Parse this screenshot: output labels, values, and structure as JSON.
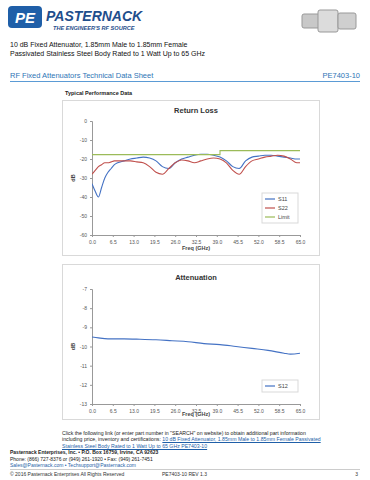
{
  "header": {
    "logo_mark": "PE",
    "logo_name": "PASTERNACK",
    "tagline": "THE ENGINEER'S RF SOURCE",
    "title_lines": [
      "10 dB Fixed Attenuator, 1.85mm Male to 1.85mm Female",
      "Passivated Stainless Steel Body Rated to 1 Watt Up to 65 GHz"
    ]
  },
  "section": {
    "title": "RF Fixed Attenuators Technical Data Sheet",
    "part_number": "PE7403-10"
  },
  "performance_title": "Typical Performance Data",
  "chart_data": [
    {
      "type": "line",
      "title": "Return Loss",
      "x_label": "Freq (GHz)",
      "y_label": "dB",
      "x": [
        0,
        1,
        2,
        3,
        4,
        5,
        6,
        7,
        8,
        10,
        12,
        14,
        16,
        18,
        20,
        22,
        24,
        26,
        28,
        30,
        32,
        34,
        36,
        38,
        40,
        42,
        44,
        46,
        48,
        50,
        52,
        54,
        56,
        58,
        60,
        62,
        64,
        65
      ],
      "series": [
        {
          "name": "S11",
          "color": "#4472c4",
          "line_style": "solid",
          "values": [
            -33,
            -37,
            -40,
            -35,
            -30,
            -27,
            -25,
            -23,
            -22,
            -21,
            -20,
            -19.5,
            -19,
            -19.5,
            -21,
            -24,
            -25,
            -22,
            -20,
            -19,
            -18,
            -17.5,
            -17.5,
            -18,
            -19,
            -21,
            -24,
            -25,
            -21,
            -19,
            -18.5,
            -18,
            -18,
            -18.5,
            -19,
            -19.5,
            -20,
            -20
          ]
        },
        {
          "name": "S22",
          "color": "#c0504d",
          "line_style": "solid",
          "values": [
            -28,
            -26,
            -24,
            -23,
            -22,
            -22,
            -21.5,
            -21,
            -21,
            -21,
            -21,
            -21.5,
            -22,
            -24,
            -27,
            -28,
            -25,
            -22,
            -20.5,
            -21,
            -22,
            -21,
            -20,
            -19.5,
            -20,
            -22,
            -26,
            -28,
            -24,
            -21,
            -20,
            -19,
            -18.5,
            -18,
            -18.5,
            -20,
            -22,
            -22
          ]
        },
        {
          "name": "Limit",
          "color": "#9bbb59",
          "line_style": "step",
          "values": [
            -17.7,
            -17.7,
            -17.7,
            -17.7,
            -17.7,
            -17.7,
            -17.7,
            -17.7,
            -17.7,
            -17.7,
            -17.7,
            -17.7,
            -17.7,
            -17.7,
            -17.7,
            -17.7,
            -17.7,
            -17.7,
            -17.7,
            -17.7,
            -17.7,
            -17.7,
            -17.7,
            -17.7,
            -15.6,
            -15.6,
            -15.6,
            -15.6,
            -15.6,
            -15.6,
            -15.6,
            -15.6,
            -15.6,
            -15.6,
            -15.6,
            -15.6,
            -15.6,
            -15.6
          ]
        }
      ],
      "xlim": [
        0,
        65
      ],
      "xticks": [
        {
          "value": 0,
          "label": "0.0"
        },
        6.5,
        {
          "value": 13,
          "label": "13.0"
        },
        19.5,
        {
          "value": 26,
          "label": "26.0"
        },
        32.5,
        {
          "value": 39,
          "label": "39.0"
        },
        45.5,
        {
          "value": 52,
          "label": "52.0"
        },
        58.5,
        {
          "value": 65,
          "label": "65.0"
        }
      ],
      "ylim": [
        -60,
        0
      ],
      "yticks": [
        0,
        -10,
        -20,
        -30,
        -40,
        -50,
        -60
      ],
      "grid": false,
      "legend": "bottom-right"
    },
    {
      "type": "line",
      "title": "Attenuation",
      "x_label": "Freq (GHz)",
      "y_label": "dB",
      "x": [
        0,
        2,
        5,
        10,
        15,
        20,
        25,
        30,
        35,
        40,
        45,
        50,
        55,
        60,
        62,
        65
      ],
      "series": [
        {
          "name": "S12",
          "color": "#4472c4",
          "line_style": "solid",
          "values": [
            -9.5,
            -9.55,
            -9.6,
            -9.6,
            -9.62,
            -9.65,
            -9.7,
            -9.75,
            -9.85,
            -9.9,
            -10.0,
            -10.1,
            -10.2,
            -10.35,
            -10.4,
            -10.35
          ]
        }
      ],
      "xlim": [
        0,
        65
      ],
      "xticks": [
        {
          "value": 0,
          "label": "0.0"
        },
        6.5,
        {
          "value": 13,
          "label": "13.0"
        },
        19.5,
        {
          "value": 26,
          "label": "26.0"
        },
        32.5,
        {
          "value": 39,
          "label": "39.0"
        },
        45.5,
        {
          "value": 52,
          "label": "52.0"
        },
        58.5,
        {
          "value": 65,
          "label": "65.0"
        }
      ],
      "ylim": [
        -13,
        -7
      ],
      "yticks": [
        -7,
        -8,
        -9,
        -10,
        -11,
        -12,
        -13
      ],
      "grid": false,
      "legend": "bottom-right"
    }
  ],
  "link_text": {
    "lead": "Click the following link (or enter part number in \"SEARCH\" on website) to obtain additional part information including price, inventory and certifications:",
    "link": "10 dB Fixed Attenuator, 1.85mm Male to 1.85mm Female Passivated Stainless Steel Body Rated to 1 Watt Up to 65 GHz PE7403-10"
  },
  "contact": [
    "Pasternack Enterprises, Inc. • P.O. Box 16759, Irvine, CA 92623",
    "Phone: (866) 727-8376 or (949) 261-1920 • Fax: (949) 261-7451",
    "Sales@Pasternack.com • Techsupport@Pasternack.com"
  ],
  "footer": {
    "copyright": "© 2016 Pasternack Enterprises All Rights Reserved",
    "revision": "PE7403-10 REV 1.3",
    "page": "3"
  }
}
